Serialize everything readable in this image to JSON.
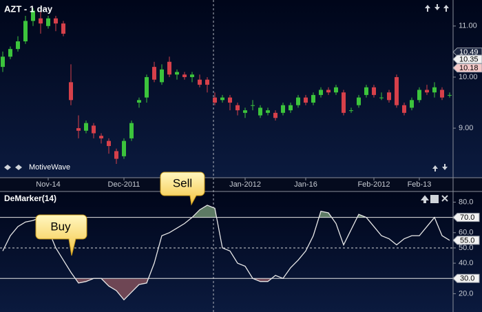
{
  "chart_data": [
    {
      "type": "candlestick",
      "title": "AZT - 1 day",
      "watermark": "MotiveWave",
      "categories": [
        null,
        null,
        null,
        null,
        null,
        null,
        "Nov-14",
        null,
        null,
        null,
        null,
        null,
        null,
        null,
        null,
        null,
        "Dec-2011",
        null,
        null,
        null,
        null,
        null,
        null,
        null,
        null,
        null,
        null,
        null,
        null,
        null,
        null,
        null,
        "Jan-2012",
        null,
        null,
        null,
        null,
        null,
        null,
        null,
        "Jan-16",
        null,
        null,
        null,
        null,
        null,
        null,
        null,
        null,
        "Feb-2012",
        null,
        null,
        null,
        null,
        null,
        "Feb-13",
        null,
        null,
        null,
        null
      ],
      "open": [
        10.2,
        10.4,
        10.55,
        10.7,
        11.1,
        11.15,
        11.0,
        11.15,
        11.05,
        9.9,
        9.0,
        8.95,
        9.05,
        8.85,
        8.75,
        8.55,
        8.45,
        8.8,
        9.5,
        9.6,
        10.2,
        9.9,
        10.3,
        10.05,
        10.05,
        10.0,
        9.95,
        9.95,
        9.6,
        9.55,
        9.6,
        9.45,
        9.3,
        9.45,
        9.25,
        9.3,
        9.3,
        9.3,
        9.35,
        9.45,
        9.6,
        9.5,
        9.65,
        9.75,
        9.7,
        9.7,
        9.35,
        9.45,
        9.65,
        9.8,
        9.6,
        9.7,
        10.0,
        9.45,
        9.4,
        9.55,
        9.75,
        9.7,
        9.75,
        9.65
      ],
      "high": [
        10.5,
        10.6,
        10.8,
        11.2,
        11.35,
        11.3,
        11.2,
        11.2,
        11.1,
        10.25,
        9.25,
        9.15,
        9.1,
        8.9,
        8.8,
        8.6,
        8.8,
        9.15,
        9.6,
        10.05,
        10.3,
        10.25,
        10.4,
        10.15,
        10.1,
        10.1,
        10.05,
        10.0,
        9.7,
        9.65,
        9.65,
        9.5,
        9.4,
        9.55,
        9.45,
        9.4,
        9.35,
        9.5,
        9.5,
        9.65,
        9.65,
        9.7,
        9.8,
        9.8,
        9.85,
        9.75,
        9.4,
        9.65,
        9.85,
        9.85,
        9.7,
        9.75,
        10.05,
        9.5,
        9.6,
        9.8,
        9.85,
        9.9,
        9.8,
        9.7
      ],
      "low": [
        10.1,
        10.35,
        10.5,
        10.65,
        11.0,
        10.85,
        10.95,
        10.9,
        10.8,
        9.45,
        8.8,
        8.9,
        8.8,
        8.7,
        8.5,
        8.3,
        8.4,
        8.75,
        9.4,
        9.5,
        9.9,
        9.85,
        10.0,
        9.95,
        9.95,
        9.9,
        9.8,
        9.7,
        9.45,
        9.5,
        9.35,
        9.25,
        9.2,
        9.35,
        9.2,
        9.25,
        9.15,
        9.25,
        9.3,
        9.4,
        9.45,
        9.45,
        9.6,
        9.65,
        9.65,
        9.25,
        9.3,
        9.4,
        9.6,
        9.6,
        9.55,
        9.5,
        9.4,
        9.25,
        9.35,
        9.5,
        9.65,
        9.6,
        9.55,
        9.6
      ],
      "close": [
        10.4,
        10.55,
        10.7,
        11.1,
        11.3,
        11.05,
        11.15,
        11.05,
        10.85,
        9.55,
        8.95,
        9.1,
        8.9,
        8.8,
        8.65,
        8.4,
        8.75,
        9.1,
        9.55,
        10.0,
        9.95,
        10.15,
        10.05,
        10.1,
        10.0,
        10.05,
        9.85,
        9.85,
        9.5,
        9.6,
        9.5,
        9.35,
        9.35,
        9.45,
        9.4,
        9.35,
        9.2,
        9.45,
        9.45,
        9.6,
        9.5,
        9.65,
        9.75,
        9.7,
        9.8,
        9.3,
        9.35,
        9.6,
        9.8,
        9.65,
        9.6,
        9.55,
        9.45,
        9.3,
        9.55,
        9.75,
        9.7,
        9.8,
        9.6,
        9.65
      ],
      "up_color": "#3cc43c",
      "down_color": "#d6404a",
      "ylim": [
        8.03,
        11.51
      ],
      "yticks": [
        {
          "value": 11,
          "label": "11.00"
        },
        {
          "value": 10,
          "label": "10.00"
        },
        {
          "value": 9,
          "label": "9.00"
        }
      ],
      "price_markers": [
        {
          "value": 10.49,
          "label": "10.49",
          "color": "#1c2640",
          "text_color": "#ffffff"
        },
        {
          "value": 10.35,
          "label": "10.35",
          "color": "#f2f2f2",
          "text_color": "#000000"
        },
        {
          "value": 10.18,
          "label": "10.18",
          "color": "#f4c8c8",
          "text_color": "#000000"
        }
      ]
    },
    {
      "type": "line",
      "title": "DeMarker(14)",
      "values": [
        48,
        58,
        64,
        67,
        68,
        70,
        62,
        50,
        42,
        34,
        27,
        28,
        30,
        30,
        25,
        22,
        16,
        21,
        26,
        27,
        40,
        58,
        60,
        63,
        66,
        70,
        75,
        78,
        76,
        50,
        48,
        40,
        38,
        30,
        28,
        28,
        32,
        30,
        37,
        42,
        48,
        58,
        74,
        73,
        66,
        52,
        62,
        72,
        70,
        64,
        58,
        56,
        52,
        56,
        58,
        58,
        64,
        70,
        58,
        55
      ],
      "value_labels": [
        null,
        null,
        null,
        null,
        null,
        null,
        null,
        null,
        null,
        null,
        null,
        null,
        null,
        null,
        null,
        null,
        null,
        null,
        null,
        null,
        null,
        null,
        null,
        null,
        null,
        null,
        null,
        null,
        null,
        null,
        null,
        null,
        null,
        null,
        null,
        null,
        null,
        null,
        null,
        null,
        null,
        null,
        null,
        null,
        null,
        null,
        null,
        null,
        null,
        null,
        null,
        null,
        null,
        null,
        null,
        null,
        null,
        null,
        null,
        "55.0"
      ],
      "color": "#e8e8e8",
      "overbought_color": "#5d7a64",
      "oversold_color": "#6e4654",
      "ylim": [
        8,
        87
      ],
      "yticks": [
        {
          "value": 80,
          "label": "80.0"
        },
        {
          "value": 70,
          "label": "70.0"
        },
        {
          "value": 60,
          "label": "60.0"
        },
        {
          "value": 50,
          "label": "50.0"
        },
        {
          "value": 40,
          "label": "40.0"
        },
        {
          "value": 30,
          "label": "30.0"
        },
        {
          "value": 20,
          "label": "20.0"
        }
      ],
      "levels": [
        {
          "value": 70,
          "label": "70.0"
        },
        {
          "value": 30,
          "label": "30.0"
        }
      ],
      "midline": 50,
      "annotations": [
        {
          "text": "Sell"
        },
        {
          "text": "Buy"
        }
      ]
    }
  ]
}
